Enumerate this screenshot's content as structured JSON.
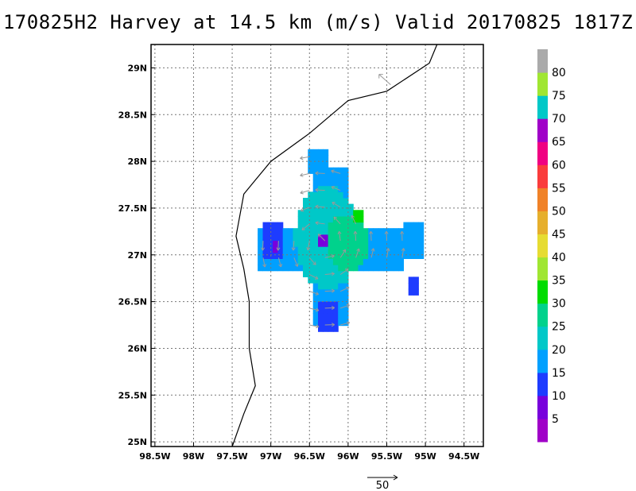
{
  "title": "170825H2 Harvey at 14.5 km (m/s) Valid 20170825 1817Z",
  "chart_data": {
    "type": "heatmap",
    "title": "170825H2 Harvey at 14.5 km (m/s) Valid 20170825 1817Z",
    "xlim": [
      -98.55,
      -94.25
    ],
    "ylim": [
      24.95,
      29.25
    ],
    "x_ticks": [
      {
        "value": -98.5,
        "label": "98.5W"
      },
      {
        "value": -98.0,
        "label": "98W"
      },
      {
        "value": -97.5,
        "label": "97.5W"
      },
      {
        "value": -97.0,
        "label": "97W"
      },
      {
        "value": -96.5,
        "label": "96.5W"
      },
      {
        "value": -96.0,
        "label": "96W"
      },
      {
        "value": -95.5,
        "label": "95.5W"
      },
      {
        "value": -95.0,
        "label": "95W"
      },
      {
        "value": -94.5,
        "label": "94.5W"
      }
    ],
    "y_ticks": [
      {
        "value": 25.0,
        "label": "25N"
      },
      {
        "value": 25.5,
        "label": "25.5N"
      },
      {
        "value": 26.0,
        "label": "26N"
      },
      {
        "value": 26.5,
        "label": "26.5N"
      },
      {
        "value": 27.0,
        "label": "27N"
      },
      {
        "value": 27.5,
        "label": "27.5N"
      },
      {
        "value": 28.0,
        "label": "28N"
      },
      {
        "value": 28.5,
        "label": "28.5N"
      },
      {
        "value": 29.0,
        "label": "29N"
      }
    ],
    "grid": true,
    "colorbar": {
      "colors": [
        "#a000c8",
        "#7800dc",
        "#1e3cff",
        "#00a0ff",
        "#00c8c8",
        "#00d28c",
        "#00dc00",
        "#a0e632",
        "#e6dc32",
        "#e6af2d",
        "#f08228",
        "#fa3c3c",
        "#f00082",
        "#a000c8",
        "#00c8c8",
        "#a0e632",
        "#aaaaaa"
      ],
      "labels": [
        "5",
        "10",
        "15",
        "20",
        "25",
        "30",
        "35",
        "40",
        "45",
        "50",
        "55",
        "60",
        "65",
        "70",
        "75",
        "80"
      ]
    },
    "coastline": [
      [
        -94.85,
        29.25
      ],
      [
        -94.95,
        29.05
      ],
      [
        -95.5,
        28.75
      ],
      [
        -96.0,
        28.65
      ],
      [
        -96.5,
        28.3
      ],
      [
        -97.0,
        28.0
      ],
      [
        -97.2,
        27.8
      ],
      [
        -97.35,
        27.65
      ],
      [
        -97.45,
        27.2
      ],
      [
        -97.35,
        26.85
      ],
      [
        -97.28,
        26.5
      ],
      [
        -97.28,
        26.0
      ],
      [
        -97.2,
        25.6
      ],
      [
        -97.35,
        25.3
      ],
      [
        -97.5,
        24.95
      ]
    ],
    "wind_field": {
      "center": [
        -96.33,
        27.12
      ],
      "layers": [
        {
          "value": 12,
          "shape": "ellipse",
          "cx": -96.3,
          "cy": 26.95,
          "rx": 0.25,
          "ry": 0.45
        },
        {
          "value": 17,
          "shape": "cross",
          "cx": -96.28,
          "cy": 27.05,
          "arm_h": 0.95,
          "arm_v": 0.85,
          "width": 0.45
        },
        {
          "value": 22,
          "shape": "ellipse",
          "cx": -96.3,
          "cy": 27.15,
          "rx": 0.42,
          "ry": 0.55
        },
        {
          "value": 26,
          "shape": "ellipse",
          "cx": -96.05,
          "cy": 27.1,
          "rx": 0.28,
          "ry": 0.3
        },
        {
          "value": 12,
          "shape": "rect",
          "x": [
            -97.15,
            -96.85
          ],
          "y": [
            26.95,
            27.3
          ]
        },
        {
          "value": 12,
          "shape": "rect",
          "x": [
            -96.45,
            -96.15
          ],
          "y": [
            26.15,
            26.5
          ]
        },
        {
          "value": 12,
          "shape": "rect",
          "x": [
            -95.25,
            -95.12
          ],
          "y": [
            26.55,
            26.75
          ]
        },
        {
          "value": 17,
          "shape": "rect",
          "x": [
            -95.3,
            -95.08
          ],
          "y": [
            26.95,
            27.3
          ]
        },
        {
          "value": 17,
          "shape": "rect",
          "x": [
            -96.55,
            -96.3
          ],
          "y": [
            27.85,
            28.1
          ]
        },
        {
          "value": 31,
          "shape": "rect",
          "x": [
            -96.0,
            -95.85
          ],
          "y": [
            27.35,
            27.45
          ]
        },
        {
          "value": 7,
          "shape": "rect",
          "x": [
            -96.4,
            -96.28
          ],
          "y": [
            27.08,
            27.18
          ]
        },
        {
          "value": 7,
          "shape": "rect",
          "x": [
            -97.0,
            -96.92
          ],
          "y": [
            27.02,
            27.1
          ]
        }
      ]
    },
    "reference_vector": {
      "label": "50",
      "value": 50
    }
  }
}
